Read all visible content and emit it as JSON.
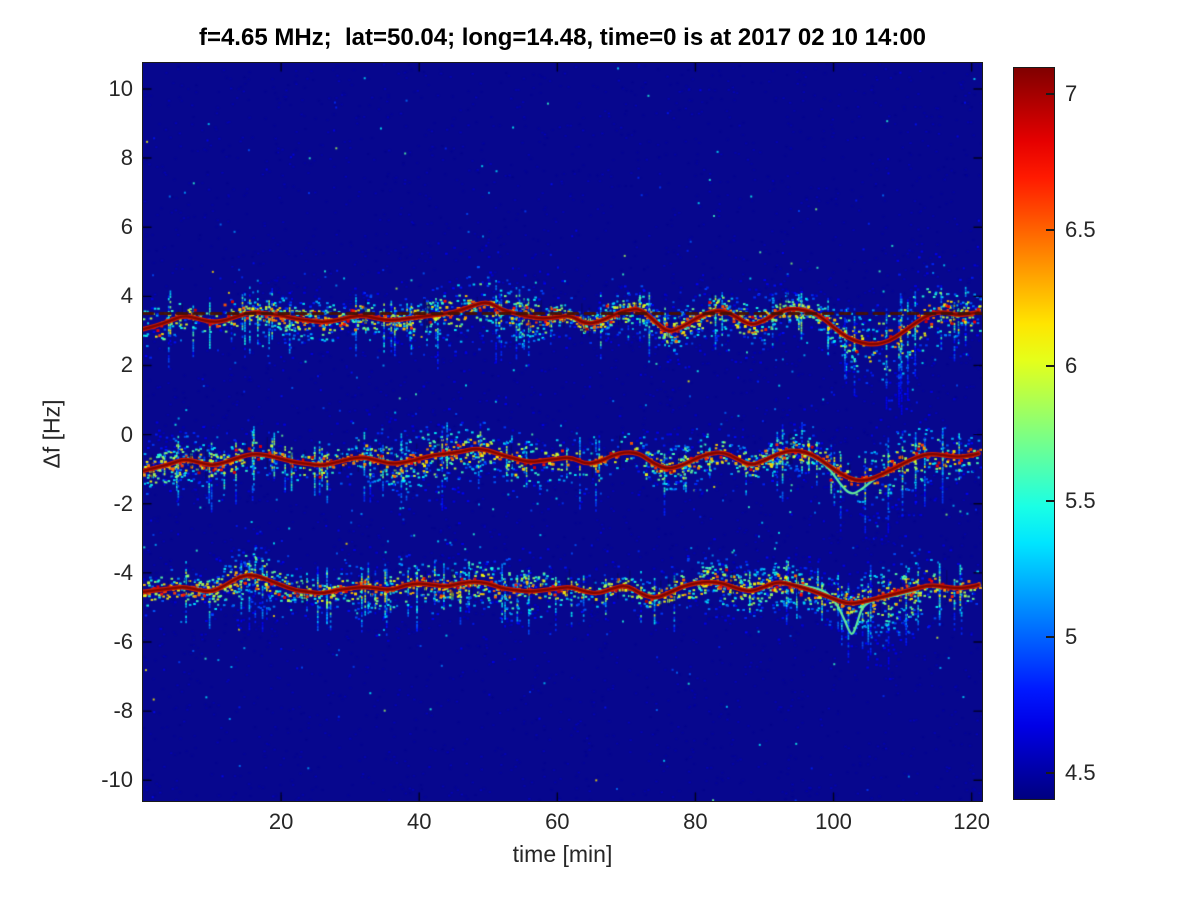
{
  "chart_data": {
    "type": "heatmap",
    "title": "f=4.65 MHz;  lat=50.04; long=14.48, time=0 is at 2017 02 10 14:00",
    "xlabel": "time [min]",
    "ylabel": "Δf [Hz]",
    "xlim": [
      0,
      121.5
    ],
    "ylim": [
      -10.6,
      10.75
    ],
    "x_ticks": [
      20,
      40,
      60,
      80,
      100,
      120
    ],
    "y_ticks": [
      10,
      8,
      6,
      4,
      2,
      0,
      -2,
      -4,
      -6,
      -8,
      -10
    ],
    "grid": false,
    "colormap": "jet",
    "colors": {
      "background_low": "#07078e",
      "trace_core": "#7e0600",
      "trace_bright": "#cc1a00",
      "secondary_trace": "#38e6c4",
      "reference_dash": "#451005",
      "axis_text": "#262626"
    },
    "colorbar": {
      "vmin": 4.4,
      "vmax": 7.1,
      "ticks": [
        7,
        6.5,
        6,
        5.5,
        5,
        4.5
      ],
      "tick_labels": [
        "7",
        "6.5",
        "6",
        "5.5",
        "5",
        "4.5"
      ],
      "position": "right"
    },
    "reference_line": {
      "y": 3.5,
      "style": "dashed"
    },
    "bands": [
      {
        "name": "upper",
        "center": 3.4,
        "trace": [
          [
            0,
            3.05
          ],
          [
            2,
            3.15
          ],
          [
            4,
            3.3
          ],
          [
            6,
            3.45
          ],
          [
            8,
            3.35
          ],
          [
            10,
            3.25
          ],
          [
            12,
            3.3
          ],
          [
            14,
            3.45
          ],
          [
            16,
            3.55
          ],
          [
            18,
            3.5
          ],
          [
            20,
            3.45
          ],
          [
            22,
            3.35
          ],
          [
            24,
            3.3
          ],
          [
            26,
            3.25
          ],
          [
            28,
            3.3
          ],
          [
            30,
            3.4
          ],
          [
            32,
            3.45
          ],
          [
            34,
            3.35
          ],
          [
            36,
            3.3
          ],
          [
            38,
            3.35
          ],
          [
            40,
            3.4
          ],
          [
            42,
            3.45
          ],
          [
            44,
            3.5
          ],
          [
            46,
            3.6
          ],
          [
            48,
            3.75
          ],
          [
            50,
            3.85
          ],
          [
            52,
            3.6
          ],
          [
            54,
            3.5
          ],
          [
            56,
            3.4
          ],
          [
            58,
            3.35
          ],
          [
            60,
            3.4
          ],
          [
            62,
            3.45
          ],
          [
            64,
            3.2
          ],
          [
            66,
            3.25
          ],
          [
            68,
            3.45
          ],
          [
            70,
            3.6
          ],
          [
            72,
            3.65
          ],
          [
            74,
            3.3
          ],
          [
            76,
            2.95
          ],
          [
            78,
            3.1
          ],
          [
            80,
            3.35
          ],
          [
            82,
            3.55
          ],
          [
            84,
            3.6
          ],
          [
            86,
            3.4
          ],
          [
            88,
            3.15
          ],
          [
            90,
            3.3
          ],
          [
            92,
            3.55
          ],
          [
            94,
            3.65
          ],
          [
            96,
            3.6
          ],
          [
            98,
            3.45
          ],
          [
            100,
            3.1
          ],
          [
            102,
            2.8
          ],
          [
            104,
            2.65
          ],
          [
            106,
            2.6
          ],
          [
            108,
            2.7
          ],
          [
            110,
            2.95
          ],
          [
            112,
            3.25
          ],
          [
            114,
            3.5
          ],
          [
            116,
            3.55
          ],
          [
            118,
            3.45
          ],
          [
            120,
            3.5
          ],
          [
            121,
            3.55
          ]
        ]
      },
      {
        "name": "middle",
        "center": -0.75,
        "trace": [
          [
            0,
            -1.05
          ],
          [
            2,
            -0.95
          ],
          [
            4,
            -0.85
          ],
          [
            6,
            -0.7
          ],
          [
            8,
            -0.8
          ],
          [
            10,
            -0.9
          ],
          [
            12,
            -0.8
          ],
          [
            14,
            -0.65
          ],
          [
            16,
            -0.55
          ],
          [
            18,
            -0.6
          ],
          [
            20,
            -0.7
          ],
          [
            22,
            -0.8
          ],
          [
            24,
            -0.85
          ],
          [
            26,
            -0.9
          ],
          [
            28,
            -0.8
          ],
          [
            30,
            -0.7
          ],
          [
            32,
            -0.65
          ],
          [
            34,
            -0.75
          ],
          [
            36,
            -0.85
          ],
          [
            38,
            -0.8
          ],
          [
            40,
            -0.7
          ],
          [
            42,
            -0.6
          ],
          [
            44,
            -0.55
          ],
          [
            46,
            -0.5
          ],
          [
            48,
            -0.4
          ],
          [
            50,
            -0.45
          ],
          [
            52,
            -0.6
          ],
          [
            54,
            -0.7
          ],
          [
            56,
            -0.8
          ],
          [
            58,
            -0.75
          ],
          [
            60,
            -0.7
          ],
          [
            62,
            -0.65
          ],
          [
            64,
            -0.85
          ],
          [
            66,
            -0.8
          ],
          [
            68,
            -0.6
          ],
          [
            70,
            -0.5
          ],
          [
            72,
            -0.55
          ],
          [
            74,
            -0.85
          ],
          [
            76,
            -1.0
          ],
          [
            78,
            -0.9
          ],
          [
            80,
            -0.7
          ],
          [
            82,
            -0.55
          ],
          [
            84,
            -0.5
          ],
          [
            86,
            -0.7
          ],
          [
            88,
            -0.9
          ],
          [
            90,
            -0.75
          ],
          [
            92,
            -0.55
          ],
          [
            94,
            -0.45
          ],
          [
            96,
            -0.5
          ],
          [
            98,
            -0.7
          ],
          [
            100,
            -1.0
          ],
          [
            102,
            -1.25
          ],
          [
            104,
            -1.35
          ],
          [
            106,
            -1.25
          ],
          [
            108,
            -1.05
          ],
          [
            110,
            -0.85
          ],
          [
            112,
            -0.65
          ],
          [
            114,
            -0.55
          ],
          [
            116,
            -0.6
          ],
          [
            118,
            -0.65
          ],
          [
            120,
            -0.6
          ],
          [
            121,
            -0.55
          ]
        ],
        "secondary": [
          [
            96.5,
            -0.6
          ],
          [
            98,
            -0.75
          ],
          [
            99.5,
            -1.0
          ],
          [
            101,
            -1.45
          ],
          [
            102.5,
            -1.75
          ],
          [
            104,
            -1.6
          ],
          [
            105.5,
            -1.35
          ],
          [
            107,
            -1.15
          ],
          [
            108.5,
            -1.0
          ],
          [
            110,
            -0.88
          ],
          [
            111.5,
            -0.75
          ]
        ]
      },
      {
        "name": "lower",
        "center": -4.45,
        "trace": [
          [
            0,
            -4.55
          ],
          [
            2,
            -4.5
          ],
          [
            4,
            -4.45
          ],
          [
            6,
            -4.4
          ],
          [
            8,
            -4.5
          ],
          [
            10,
            -4.55
          ],
          [
            12,
            -4.35
          ],
          [
            14,
            -4.1
          ],
          [
            16,
            -4.05
          ],
          [
            18,
            -4.2
          ],
          [
            20,
            -4.35
          ],
          [
            22,
            -4.5
          ],
          [
            24,
            -4.55
          ],
          [
            26,
            -4.6
          ],
          [
            28,
            -4.5
          ],
          [
            30,
            -4.45
          ],
          [
            32,
            -4.4
          ],
          [
            34,
            -4.45
          ],
          [
            36,
            -4.5
          ],
          [
            38,
            -4.35
          ],
          [
            40,
            -4.3
          ],
          [
            42,
            -4.35
          ],
          [
            44,
            -4.4
          ],
          [
            46,
            -4.3
          ],
          [
            48,
            -4.25
          ],
          [
            50,
            -4.3
          ],
          [
            52,
            -4.45
          ],
          [
            54,
            -4.5
          ],
          [
            56,
            -4.55
          ],
          [
            58,
            -4.5
          ],
          [
            60,
            -4.45
          ],
          [
            62,
            -4.4
          ],
          [
            64,
            -4.55
          ],
          [
            66,
            -4.6
          ],
          [
            68,
            -4.45
          ],
          [
            70,
            -4.35
          ],
          [
            72,
            -4.6
          ],
          [
            74,
            -4.75
          ],
          [
            76,
            -4.6
          ],
          [
            78,
            -4.4
          ],
          [
            80,
            -4.3
          ],
          [
            82,
            -4.25
          ],
          [
            84,
            -4.3
          ],
          [
            86,
            -4.45
          ],
          [
            88,
            -4.55
          ],
          [
            90,
            -4.4
          ],
          [
            92,
            -4.25
          ],
          [
            94,
            -4.35
          ],
          [
            96,
            -4.45
          ],
          [
            98,
            -4.6
          ],
          [
            100,
            -4.75
          ],
          [
            102,
            -4.9
          ],
          [
            104,
            -4.85
          ],
          [
            106,
            -4.75
          ],
          [
            108,
            -4.65
          ],
          [
            110,
            -4.55
          ],
          [
            112,
            -4.45
          ],
          [
            114,
            -4.35
          ],
          [
            116,
            -4.4
          ],
          [
            118,
            -4.45
          ],
          [
            120,
            -4.4
          ],
          [
            121,
            -4.35
          ]
        ],
        "secondary": [
          [
            93,
            -4.3
          ],
          [
            95,
            -4.35
          ],
          [
            97,
            -4.42
          ],
          [
            99,
            -4.55
          ],
          [
            100.5,
            -4.9
          ],
          [
            101.8,
            -5.45
          ],
          [
            102.6,
            -5.85
          ],
          [
            103.3,
            -5.55
          ],
          [
            104,
            -5.05
          ],
          [
            105,
            -4.85
          ],
          [
            106.5,
            -4.75
          ],
          [
            108,
            -4.7
          ],
          [
            110,
            -4.62
          ],
          [
            112,
            -4.5
          ]
        ]
      }
    ]
  }
}
